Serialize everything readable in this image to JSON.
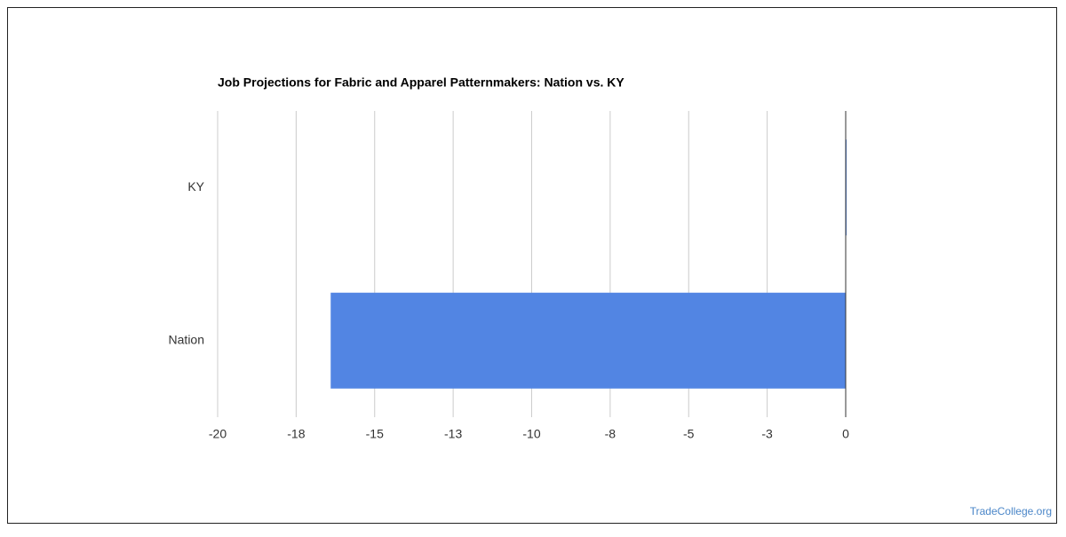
{
  "chart_data": {
    "type": "bar",
    "orientation": "horizontal",
    "title": "Job Projections for Fabric and Apparel Patternmakers: Nation vs. KY",
    "categories": [
      "KY",
      "Nation"
    ],
    "values": [
      0,
      -16.4
    ],
    "color": "#5285e3",
    "xlim": [
      -20,
      0
    ],
    "xticks": [
      -20,
      {
        "value": -17.5,
        "label": "-18"
      },
      -15,
      {
        "value": -12.5,
        "label": "-13"
      },
      -10,
      {
        "value": -7.5,
        "label": "-8"
      },
      -5,
      {
        "value": -2.5,
        "label": "-3"
      },
      0
    ],
    "grid": true,
    "watermark": "TradeCollege.org"
  }
}
